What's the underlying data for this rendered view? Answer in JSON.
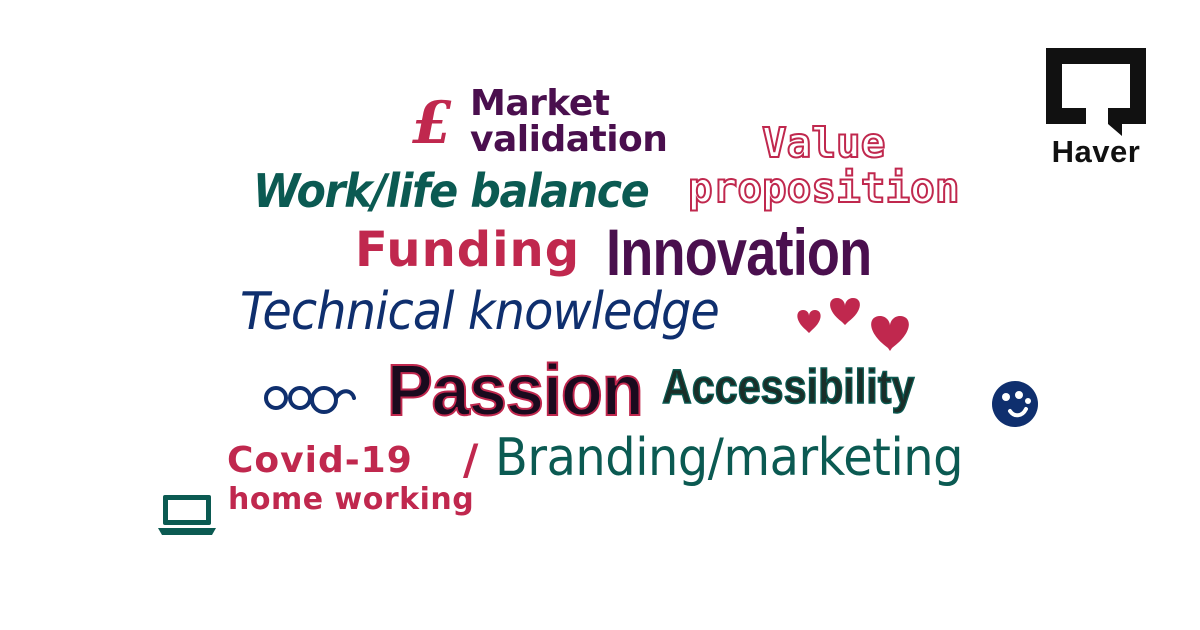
{
  "words": {
    "pound": "£",
    "market_line1": "Market",
    "market_line2": "validation",
    "value_line1": "Value",
    "value_line2": "proposition",
    "worklife": "Work/life balance",
    "funding": "Funding",
    "innovation": "Innovation",
    "technical": "Technical knowledge",
    "passion": "Passion",
    "accessibility": "Accessibility",
    "covid": "Covid-19",
    "slash": "/",
    "homeworking": "home working",
    "branding": "Branding/marketing"
  },
  "logo": {
    "name": "Haver"
  },
  "icons": [
    "heart-icon",
    "glasses-icon",
    "smiley-icon",
    "laptop-icon"
  ],
  "colors": {
    "purple": "#4a0f4e",
    "red": "#c0284e",
    "teal": "#0b5a52",
    "navy": "#0f2f6e"
  }
}
